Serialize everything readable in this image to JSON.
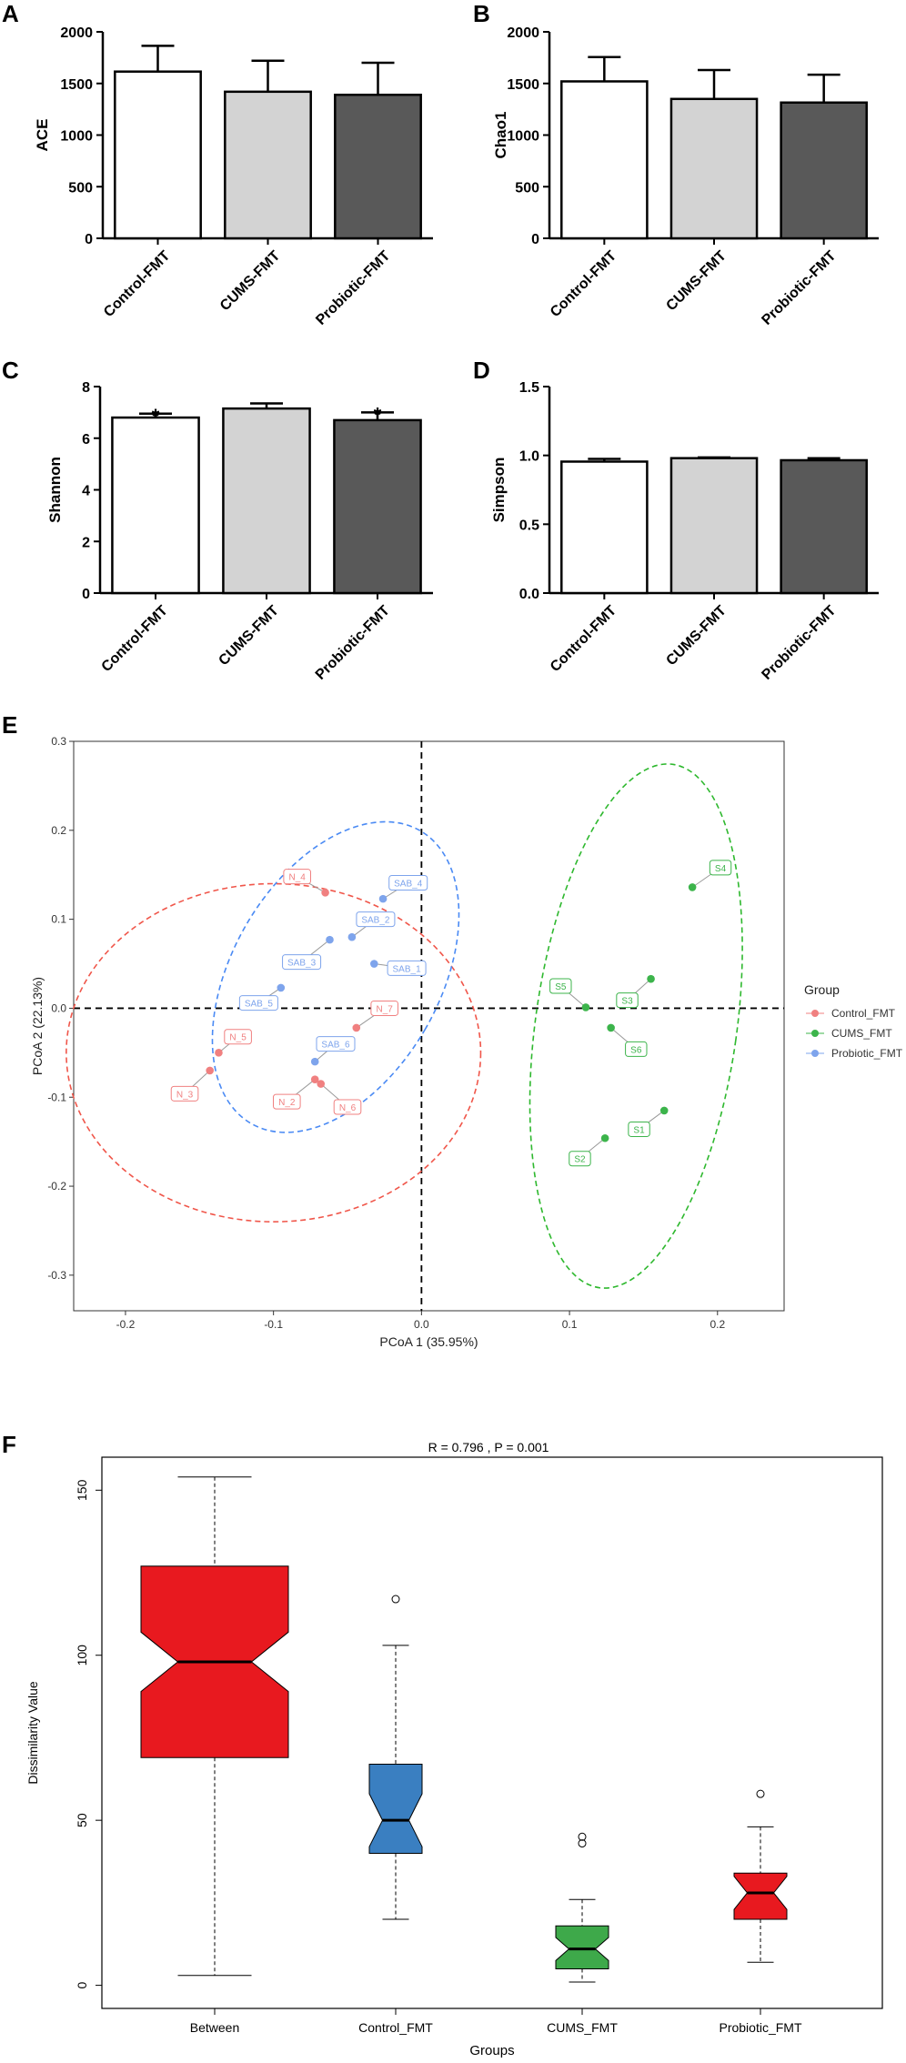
{
  "chart_data": [
    {
      "panel": "A",
      "type": "bar",
      "ylabel": "ACE",
      "categories": [
        "Control-FMT",
        "CUMS-FMT",
        "Probiotic-FMT"
      ],
      "values": [
        1615,
        1420,
        1390
      ],
      "errors": [
        250,
        300,
        310
      ],
      "yticks": [
        0,
        500,
        1000,
        1500,
        2000
      ],
      "ylim": [
        0,
        2000
      ],
      "fills": [
        "#ffffff",
        "#d3d3d3",
        "#595959"
      ]
    },
    {
      "panel": "B",
      "type": "bar",
      "ylabel": "Chao1",
      "categories": [
        "Control-FMT",
        "CUMS-FMT",
        "Probiotic-FMT"
      ],
      "values": [
        1520,
        1350,
        1315
      ],
      "errors": [
        235,
        280,
        270
      ],
      "yticks": [
        0,
        500,
        1000,
        1500,
        2000
      ],
      "ylim": [
        0,
        2000
      ],
      "fills": [
        "#ffffff",
        "#d3d3d3",
        "#595959"
      ]
    },
    {
      "panel": "C",
      "type": "bar",
      "ylabel": "Shannon",
      "categories": [
        "Control-FMT",
        "CUMS-FMT",
        "Probiotic-FMT"
      ],
      "values": [
        6.8,
        7.15,
        6.7
      ],
      "errors": [
        0.15,
        0.2,
        0.3
      ],
      "annotations": [
        "*",
        "",
        "*"
      ],
      "yticks": [
        0,
        2,
        4,
        6,
        8
      ],
      "ylim": [
        0,
        8
      ],
      "fills": [
        "#ffffff",
        "#d3d3d3",
        "#595959"
      ]
    },
    {
      "panel": "D",
      "type": "bar",
      "ylabel": "Simpson",
      "categories": [
        "Control-FMT",
        "CUMS-FMT",
        "Probiotic-FMT"
      ],
      "values": [
        0.955,
        0.98,
        0.965
      ],
      "errors": [
        0.02,
        0.005,
        0.015
      ],
      "yticks": [
        "0.0",
        "0.5",
        "1.0",
        "1.5"
      ],
      "ylim": [
        0,
        1.5
      ],
      "fills": [
        "#ffffff",
        "#d3d3d3",
        "#595959"
      ]
    },
    {
      "panel": "E",
      "type": "scatter",
      "xlabel": "PCoA 1 (35.95%)",
      "ylabel": "PCoA 2 (22.13%)",
      "xticks": [
        "-0.2",
        "-0.1",
        "0.0",
        "0.1",
        "0.2"
      ],
      "yticks": [
        "0.3",
        "0.2",
        "0.1",
        "0.0",
        "-0.1",
        "-0.2",
        "-0.3"
      ],
      "xlim": [
        -0.235,
        0.245
      ],
      "ylim": [
        -0.34,
        0.3
      ],
      "legend": {
        "title": "Group",
        "items": [
          {
            "name": "Control_FMT",
            "color": "#f08080"
          },
          {
            "name": "CUMS_FMT",
            "color": "#3cb44b"
          },
          {
            "name": "Probiotic_FMT",
            "color": "#7ea4ec"
          }
        ]
      },
      "series": [
        {
          "name": "Control_FMT",
          "color": "#f08080",
          "ellipse_color": "#f0564a",
          "ellipse": {
            "cx": -0.1,
            "cy": -0.05,
            "rx": 0.14,
            "ry": 0.19,
            "rot": 0
          },
          "points": [
            {
              "label": "N_4",
              "x": -0.065,
              "y": 0.13,
              "lx": -0.084,
              "ly": 0.148
            },
            {
              "label": "N_7",
              "x": -0.044,
              "y": -0.022,
              "lx": -0.025,
              "ly": 0.0
            },
            {
              "label": "N_5",
              "x": -0.137,
              "y": -0.05,
              "lx": -0.124,
              "ly": -0.032
            },
            {
              "label": "N_3",
              "x": -0.143,
              "y": -0.07,
              "lx": -0.16,
              "ly": -0.096
            },
            {
              "label": "N_2",
              "x": -0.072,
              "y": -0.08,
              "lx": -0.091,
              "ly": -0.105
            },
            {
              "label": "N_6",
              "x": -0.068,
              "y": -0.085,
              "lx": -0.05,
              "ly": -0.111
            }
          ]
        },
        {
          "name": "CUMS_FMT",
          "color": "#3cb44b",
          "ellipse_color": "#2eb82e",
          "ellipse": {
            "cx": 0.145,
            "cy": -0.02,
            "rx": 0.068,
            "ry": 0.297,
            "rot": 8
          },
          "points": [
            {
              "label": "S4",
              "x": 0.183,
              "y": 0.136,
              "lx": 0.202,
              "ly": 0.158
            },
            {
              "label": "S3",
              "x": 0.155,
              "y": 0.033,
              "lx": 0.139,
              "ly": 0.009
            },
            {
              "label": "S5",
              "x": 0.111,
              "y": 0.001,
              "lx": 0.094,
              "ly": 0.025
            },
            {
              "label": "S6",
              "x": 0.128,
              "y": -0.022,
              "lx": 0.145,
              "ly": -0.046
            },
            {
              "label": "S1",
              "x": 0.164,
              "y": -0.115,
              "lx": 0.147,
              "ly": -0.136
            },
            {
              "label": "S2",
              "x": 0.124,
              "y": -0.146,
              "lx": 0.107,
              "ly": -0.169
            }
          ]
        },
        {
          "name": "Probiotic_FMT",
          "color": "#7ea4ec",
          "ellipse_color": "#4a8af4",
          "ellipse": {
            "cx": -0.058,
            "cy": 0.035,
            "rx": 0.07,
            "ry": 0.19,
            "rot": 30
          },
          "points": [
            {
              "label": "SAB_4",
              "x": -0.026,
              "y": 0.123,
              "lx": -0.009,
              "ly": 0.141
            },
            {
              "label": "SAB_2",
              "x": -0.047,
              "y": 0.08,
              "lx": -0.031,
              "ly": 0.1
            },
            {
              "label": "SAB_3",
              "x": -0.062,
              "y": 0.077,
              "lx": -0.081,
              "ly": 0.052
            },
            {
              "label": "SAB_1",
              "x": -0.032,
              "y": 0.05,
              "lx": -0.01,
              "ly": 0.045
            },
            {
              "label": "SAB_5",
              "x": -0.095,
              "y": 0.023,
              "lx": -0.11,
              "ly": 0.006
            },
            {
              "label": "SAB_6",
              "x": -0.072,
              "y": -0.06,
              "lx": -0.058,
              "ly": -0.04
            }
          ]
        }
      ]
    },
    {
      "panel": "F",
      "type": "box",
      "title": "R =  0.796 ,  P =  0.001",
      "xlabel": "Groups",
      "ylabel": "Dissimilarity Value",
      "yticks": [
        0,
        50,
        100,
        150
      ],
      "ylim": [
        -7,
        160
      ],
      "categories": [
        "Between",
        "Control_FMT",
        "CUMS_FMT",
        "Probiotic_FMT"
      ],
      "boxes": [
        {
          "name": "Between",
          "min": 3,
          "q1": 69,
          "median": 98,
          "q3": 127,
          "max": 154,
          "notch_lo": 89,
          "notch_hi": 107,
          "outliers": [],
          "color": "#e8191f"
        },
        {
          "name": "Control_FMT",
          "min": 20,
          "q1": 40,
          "median": 50,
          "q3": 67,
          "max": 103,
          "notch_lo": 42,
          "notch_hi": 58,
          "outliers": [
            117
          ],
          "color": "#3a7fc1"
        },
        {
          "name": "CUMS_FMT",
          "min": 1,
          "q1": 5,
          "median": 11,
          "q3": 18,
          "max": 26,
          "notch_lo": 7.5,
          "notch_hi": 14.5,
          "outliers": [
            43,
            45
          ],
          "color": "#3ea94a"
        },
        {
          "name": "Probiotic_FMT",
          "min": 7,
          "q1": 20,
          "median": 28,
          "q3": 34,
          "max": 48,
          "notch_lo": 23,
          "notch_hi": 33,
          "outliers": [
            58
          ],
          "color": "#e8191f"
        }
      ]
    }
  ]
}
